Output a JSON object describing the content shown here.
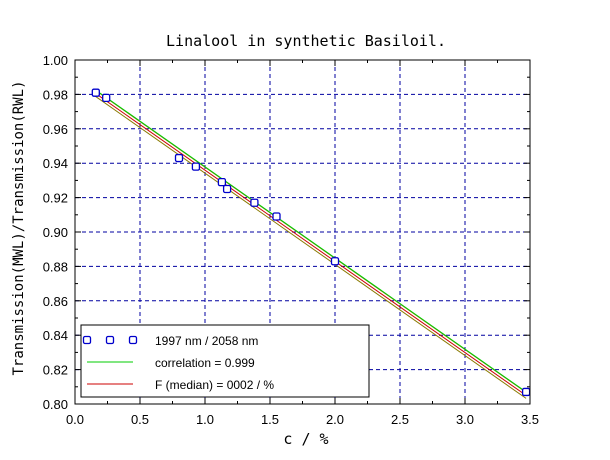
{
  "chart_data": {
    "type": "scatter",
    "title": "Linalool in synthetic Basiloil.",
    "xlabel": "c  /  %",
    "ylabel": "Transmission(MWL)/Transmission(RWL)",
    "xlim": [
      0.0,
      3.5
    ],
    "ylim": [
      0.8,
      1.0
    ],
    "x_ticks": [
      "0.0",
      "0.5",
      "1.0",
      "1.5",
      "2.0",
      "2.5",
      "3.0",
      "3.5"
    ],
    "y_ticks": [
      "0.80",
      "0.82",
      "0.84",
      "0.86",
      "0.88",
      "0.90",
      "0.92",
      "0.94",
      "0.96",
      "0.98",
      "1.00"
    ],
    "grid": true,
    "legend_position": "bottom-left",
    "colors": {
      "axis": "#000000",
      "grid": "#0000a0",
      "points": "#0000cc",
      "correlation": "#00cc00",
      "fit": "#cc0000",
      "band": "#8a7a00"
    },
    "series": [
      {
        "name": "1997 nm / 2058 nm",
        "kind": "points",
        "x": [
          0.16,
          0.24,
          0.8,
          0.93,
          1.13,
          1.17,
          1.38,
          1.55,
          2.0,
          3.47
        ],
        "y": [
          0.981,
          0.978,
          0.943,
          0.938,
          0.929,
          0.925,
          0.917,
          0.909,
          0.883,
          0.807
        ]
      },
      {
        "name": "correlation = 0.999",
        "kind": "line",
        "x": [
          0.15,
          3.47
        ],
        "y": [
          0.983,
          0.807
        ]
      },
      {
        "name": "F (median) = 0002 / %",
        "kind": "line",
        "x": [
          0.15,
          3.47
        ],
        "y": [
          0.981,
          0.805
        ]
      }
    ]
  }
}
